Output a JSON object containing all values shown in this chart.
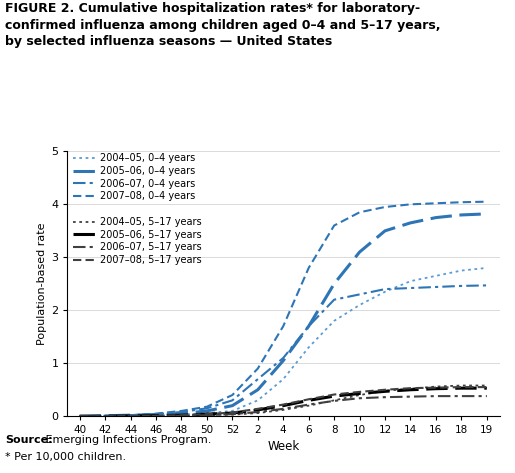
{
  "title_line1": "FIGURE 2. Cumulative hospitalization rates* for laboratory-",
  "title_line2": "confirmed influenza among children aged 0–4 and 5–17 years,",
  "title_line3": "by selected influenza seasons — United States",
  "ylabel": "Population-based rate",
  "xlabel": "Week",
  "source_bold": "Source:",
  "source_rest": " Emerging Infections Program.",
  "source_line2": "* Per 10,000 children.",
  "ylim": [
    0,
    5
  ],
  "yticks": [
    0,
    1,
    2,
    3,
    4,
    5
  ],
  "xtick_labels": [
    "40",
    "42",
    "44",
    "46",
    "48",
    "50",
    "52",
    "2",
    "4",
    "6",
    "8",
    "10",
    "12",
    "14",
    "16",
    "18",
    "19"
  ],
  "blue_color": "#4472C4",
  "black_color": "#000000",
  "series": [
    {
      "label": "2004–05, 0–4 years",
      "color": "#5B9BD5",
      "linestyle_key": "dotted",
      "lw": 1.3,
      "weeks": [
        40,
        42,
        44,
        46,
        48,
        50,
        52,
        2,
        4,
        6,
        8,
        10,
        12,
        14,
        16,
        18,
        19
      ],
      "values": [
        0.0,
        0.01,
        0.01,
        0.02,
        0.03,
        0.06,
        0.1,
        0.3,
        0.7,
        1.3,
        1.8,
        2.1,
        2.35,
        2.55,
        2.65,
        2.75,
        2.8
      ]
    },
    {
      "label": "2005–06, 0–4 years",
      "color": "#2E75B6",
      "linestyle_key": "longdash",
      "lw": 2.2,
      "weeks": [
        40,
        42,
        44,
        46,
        48,
        50,
        52,
        2,
        4,
        6,
        8,
        10,
        12,
        14,
        16,
        18,
        19
      ],
      "values": [
        0.0,
        0.01,
        0.02,
        0.03,
        0.05,
        0.1,
        0.2,
        0.5,
        1.05,
        1.7,
        2.5,
        3.1,
        3.5,
        3.65,
        3.75,
        3.8,
        3.82
      ]
    },
    {
      "label": "2006–07, 0–4 years",
      "color": "#2E75B6",
      "linestyle_key": "dashdot",
      "lw": 1.5,
      "weeks": [
        40,
        42,
        44,
        46,
        48,
        50,
        52,
        2,
        4,
        6,
        8,
        10,
        12,
        14,
        16,
        18,
        19
      ],
      "values": [
        0.0,
        0.01,
        0.02,
        0.04,
        0.08,
        0.15,
        0.3,
        0.7,
        1.1,
        1.7,
        2.2,
        2.3,
        2.4,
        2.42,
        2.44,
        2.46,
        2.47
      ]
    },
    {
      "label": "2007–08, 0–4 years",
      "color": "#2E75B6",
      "linestyle_key": "shortdash",
      "lw": 1.5,
      "weeks": [
        40,
        42,
        44,
        46,
        48,
        50,
        52,
        2,
        4,
        6,
        8,
        10,
        12,
        14,
        16,
        18,
        19
      ],
      "values": [
        0.0,
        0.01,
        0.02,
        0.05,
        0.1,
        0.18,
        0.4,
        0.9,
        1.7,
        2.8,
        3.6,
        3.85,
        3.95,
        4.0,
        4.02,
        4.04,
        4.05
      ]
    },
    {
      "label": "2004–05, 5–17 years",
      "color": "#404040",
      "linestyle_key": "dotted",
      "lw": 1.3,
      "weeks": [
        40,
        42,
        44,
        46,
        48,
        50,
        52,
        2,
        4,
        6,
        8,
        10,
        12,
        14,
        16,
        18,
        19
      ],
      "values": [
        0.0,
        0.0,
        0.0,
        0.005,
        0.01,
        0.02,
        0.03,
        0.06,
        0.12,
        0.2,
        0.3,
        0.4,
        0.48,
        0.52,
        0.56,
        0.58,
        0.58
      ]
    },
    {
      "label": "2005–06, 5–17 years",
      "color": "#000000",
      "linestyle_key": "longdash",
      "lw": 2.2,
      "weeks": [
        40,
        42,
        44,
        46,
        48,
        50,
        52,
        2,
        4,
        6,
        8,
        10,
        12,
        14,
        16,
        18,
        19
      ],
      "values": [
        0.0,
        0.0,
        0.005,
        0.01,
        0.02,
        0.04,
        0.06,
        0.12,
        0.2,
        0.3,
        0.38,
        0.43,
        0.47,
        0.5,
        0.52,
        0.53,
        0.53
      ]
    },
    {
      "label": "2006–07, 5–17 years",
      "color": "#404040",
      "linestyle_key": "dashdot",
      "lw": 1.5,
      "weeks": [
        40,
        42,
        44,
        46,
        48,
        50,
        52,
        2,
        4,
        6,
        8,
        10,
        12,
        14,
        16,
        18,
        19
      ],
      "values": [
        0.0,
        0.0,
        0.0,
        0.005,
        0.01,
        0.02,
        0.04,
        0.08,
        0.14,
        0.22,
        0.29,
        0.34,
        0.36,
        0.37,
        0.38,
        0.38,
        0.38
      ]
    },
    {
      "label": "2007–08, 5–17 years",
      "color": "#404040",
      "linestyle_key": "shortdash",
      "lw": 1.5,
      "weeks": [
        40,
        42,
        44,
        46,
        48,
        50,
        52,
        2,
        4,
        6,
        8,
        10,
        12,
        14,
        16,
        18,
        19
      ],
      "values": [
        0.0,
        0.0,
        0.005,
        0.01,
        0.02,
        0.04,
        0.07,
        0.14,
        0.22,
        0.32,
        0.41,
        0.46,
        0.5,
        0.53,
        0.54,
        0.55,
        0.55
      ]
    }
  ]
}
